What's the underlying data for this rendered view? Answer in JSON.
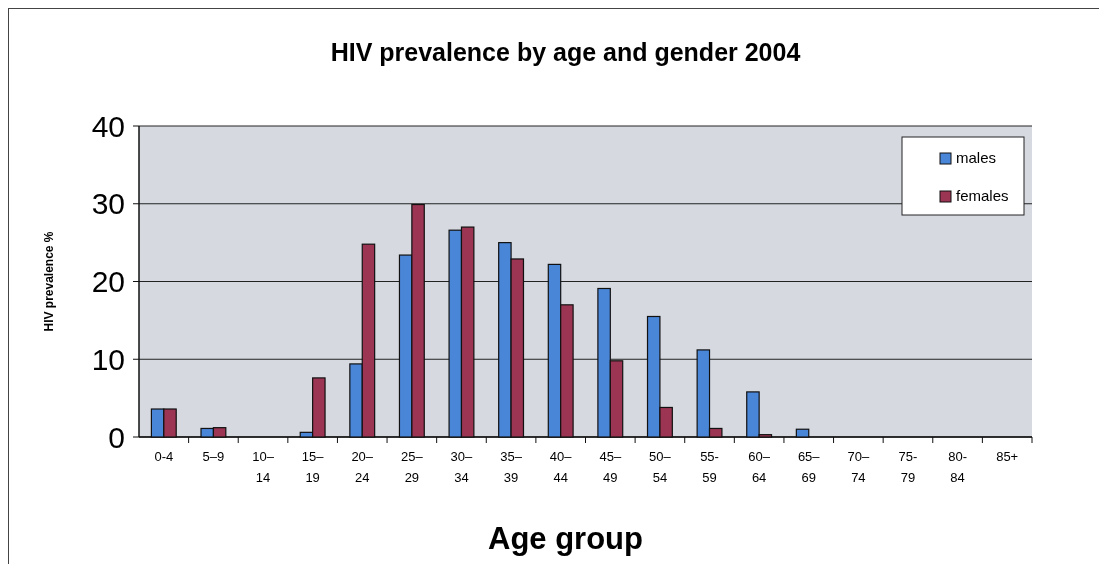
{
  "chart_data": {
    "type": "bar",
    "title": "HIV prevalence by age and gender 2004",
    "xlabel": "Age group",
    "ylabel": "HIV prevalence %",
    "categories": [
      "0-4",
      "5–9",
      "10–14",
      "15–19",
      "20–24",
      "25–29",
      "30–34",
      "35–39",
      "40–44",
      "45–49",
      "50–54",
      "55-59",
      "60–64",
      "65–69",
      "70–74",
      "75-79",
      "80-84",
      "85+"
    ],
    "series": [
      {
        "name": "males",
        "color": "#4a86d8",
        "values": [
          3.6,
          1.1,
          0,
          0.6,
          9.4,
          23.4,
          26.6,
          25.0,
          22.2,
          19.1,
          15.5,
          11.2,
          5.8,
          1.0,
          0,
          0,
          0,
          0
        ]
      },
      {
        "name": "females",
        "color": "#9b3553",
        "values": [
          3.6,
          1.2,
          0,
          7.6,
          24.8,
          29.9,
          27.0,
          22.9,
          17.0,
          9.8,
          3.8,
          1.1,
          0.3,
          0,
          0,
          0,
          0,
          0
        ]
      }
    ],
    "ylim": [
      0,
      40
    ],
    "yticks": [
      0,
      10,
      20,
      30,
      40
    ],
    "grid": "y",
    "legend": "top right"
  }
}
